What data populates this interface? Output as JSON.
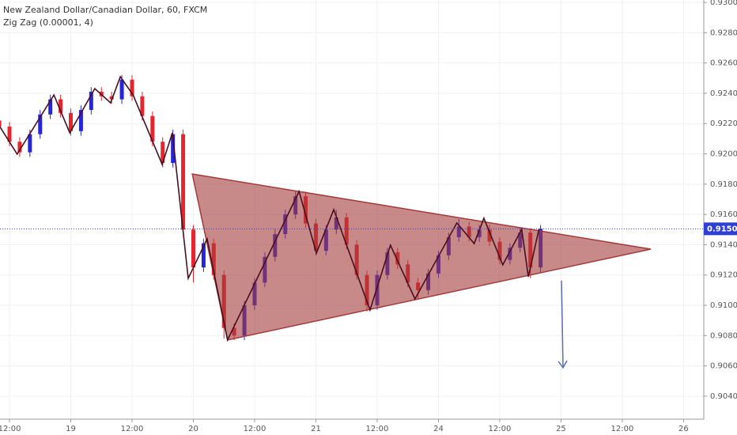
{
  "chart_data": {
    "type": "candlestick",
    "title": "New Zealand Dollar/Canadian Dollar, 60, FXCM",
    "subtitle": "Zig Zag (0.00001, 4)",
    "up_color": "#2626d9",
    "down_color": "#e5262e",
    "grid": true,
    "xlim": [
      -1.86,
      135.96
    ],
    "ylim": [
      0.90248,
      0.93016
    ],
    "xticks": [
      {
        "value": 0,
        "label": "12:00"
      },
      {
        "value": 12,
        "label": "19"
      },
      {
        "value": 24,
        "label": "12:00"
      },
      {
        "value": 36,
        "label": "20"
      },
      {
        "value": 48,
        "label": "12:00"
      },
      {
        "value": 60,
        "label": "21"
      },
      {
        "value": 72,
        "label": "12:00"
      },
      {
        "value": 84,
        "label": "24"
      },
      {
        "value": 96,
        "label": "12:00"
      },
      {
        "value": 108,
        "label": "25"
      },
      {
        "value": 120,
        "label": "12:00"
      },
      {
        "value": 132,
        "label": "26"
      }
    ],
    "yticks": [
      {
        "value": 0.93,
        "label": "0.93000"
      },
      {
        "value": 0.928,
        "label": "0.92800"
      },
      {
        "value": 0.926,
        "label": "0.92600"
      },
      {
        "value": 0.924,
        "label": "0.92400"
      },
      {
        "value": 0.922,
        "label": "0.92200"
      },
      {
        "value": 0.92,
        "label": "0.92000"
      },
      {
        "value": 0.918,
        "label": "0.91800"
      },
      {
        "value": 0.916,
        "label": "0.91600"
      },
      {
        "value": 0.914,
        "label": "0.91400"
      },
      {
        "value": 0.912,
        "label": "0.91200"
      },
      {
        "value": 0.91,
        "label": "0.91000"
      },
      {
        "value": 0.908,
        "label": "0.90800"
      },
      {
        "value": 0.906,
        "label": "0.90600"
      },
      {
        "value": 0.904,
        "label": "0.90400"
      }
    ],
    "x": [
      -2,
      0,
      2,
      4,
      6,
      8,
      10,
      12,
      14,
      16,
      18,
      20,
      22,
      24,
      26,
      28,
      30,
      32,
      34,
      36,
      38,
      40,
      42,
      44,
      46,
      48,
      50,
      52,
      54,
      56,
      58,
      60,
      62,
      64,
      66,
      68,
      70,
      72,
      74,
      76,
      78,
      80,
      82,
      84,
      86,
      88,
      90,
      92,
      94,
      96,
      98,
      100,
      102,
      104
    ],
    "open": [
      0.9222,
      0.9218,
      0.9208,
      0.9201,
      0.9213,
      0.9226,
      0.9236,
      0.9227,
      0.9215,
      0.9229,
      0.9241,
      0.9238,
      0.9236,
      0.9249,
      0.9238,
      0.9225,
      0.9208,
      0.9194,
      0.9213,
      0.915,
      0.9125,
      0.9141,
      0.912,
      0.9085,
      0.908,
      0.91,
      0.9115,
      0.9132,
      0.9147,
      0.916,
      0.9172,
      0.9154,
      0.9136,
      0.915,
      0.9158,
      0.914,
      0.912,
      0.91,
      0.912,
      0.9135,
      0.9127,
      0.9115,
      0.911,
      0.9121,
      0.9133,
      0.9145,
      0.9152,
      0.9145,
      0.915,
      0.9142,
      0.913,
      0.9138,
      0.9148,
      0.9125
    ],
    "high": [
      0.9225,
      0.9221,
      0.9211,
      0.9216,
      0.9229,
      0.9239,
      0.9239,
      0.923,
      0.9232,
      0.9244,
      0.9244,
      0.9241,
      0.9252,
      0.9252,
      0.9241,
      0.9228,
      0.9211,
      0.9216,
      0.9216,
      0.9153,
      0.9144,
      0.9144,
      0.9123,
      0.9088,
      0.9103,
      0.9118,
      0.9135,
      0.915,
      0.9163,
      0.9175,
      0.9175,
      0.9157,
      0.9153,
      0.9163,
      0.9161,
      0.9143,
      0.9123,
      0.9123,
      0.9138,
      0.9138,
      0.913,
      0.9118,
      0.9124,
      0.9136,
      0.9148,
      0.9157,
      0.9155,
      0.9153,
      0.9153,
      0.9145,
      0.9141,
      0.9151,
      0.9151,
      0.9153
    ],
    "low": [
      0.9215,
      0.9205,
      0.9198,
      0.9198,
      0.921,
      0.9223,
      0.9224,
      0.9212,
      0.9212,
      0.9226,
      0.9235,
      0.9233,
      0.9233,
      0.9235,
      0.9222,
      0.9205,
      0.9191,
      0.9191,
      0.9147,
      0.9115,
      0.9122,
      0.9117,
      0.9078,
      0.9077,
      0.9077,
      0.9097,
      0.9112,
      0.9129,
      0.9144,
      0.9157,
      0.9151,
      0.9133,
      0.9133,
      0.9147,
      0.9137,
      0.9117,
      0.9096,
      0.9097,
      0.9117,
      0.9124,
      0.9112,
      0.9104,
      0.9107,
      0.9118,
      0.913,
      0.9142,
      0.9142,
      0.9142,
      0.9139,
      0.9127,
      0.9127,
      0.9135,
      0.9118,
      0.9122
    ],
    "close": [
      0.9218,
      0.9208,
      0.9201,
      0.9213,
      0.9226,
      0.9236,
      0.9227,
      0.9215,
      0.9229,
      0.9241,
      0.9238,
      0.9236,
      0.9249,
      0.9238,
      0.9225,
      0.9208,
      0.9194,
      0.9213,
      0.915,
      0.9125,
      0.9141,
      0.912,
      0.9085,
      0.908,
      0.91,
      0.9115,
      0.9132,
      0.9147,
      0.916,
      0.9172,
      0.9154,
      0.9136,
      0.915,
      0.9158,
      0.914,
      0.912,
      0.91,
      0.912,
      0.9135,
      0.9127,
      0.9115,
      0.911,
      0.9121,
      0.9133,
      0.9145,
      0.9152,
      0.9145,
      0.915,
      0.9142,
      0.913,
      0.9138,
      0.9148,
      0.9125,
      0.91505
    ],
    "zigzag": {
      "color": "#4a0f1e",
      "x": [
        -1.9,
        1.5,
        8.7,
        11.8,
        16.7,
        19.8,
        21.7,
        24.2,
        29.9,
        31.9,
        35.0,
        38.7,
        42.7,
        56.7,
        60.1,
        63.5,
        70.6,
        74.6,
        79.4,
        87.6,
        91.0,
        92.9,
        96.6,
        100.3,
        101.6,
        103.7
      ],
      "y": [
        0.9218,
        0.91998,
        0.92389,
        0.92139,
        0.92431,
        0.92337,
        0.92509,
        0.92389,
        0.9193,
        0.92139,
        0.91178,
        0.91439,
        0.90771,
        0.91752,
        0.91345,
        0.91632,
        0.90969,
        0.91397,
        0.91042,
        0.91544,
        0.91408,
        0.91575,
        0.91267,
        0.91502,
        0.91189,
        0.91505
      ]
    },
    "triangle": {
      "color": "#a33a3a",
      "x": [
        35.8,
        125.6,
        42.7
      ],
      "y": [
        0.91867,
        0.91371,
        0.90771
      ]
    },
    "arrow": {
      "color": "#5b6fae",
      "x": [
        108.1,
        108.4
      ],
      "y": [
        0.91163,
        0.90588
      ]
    },
    "last_price": {
      "value": 0.91505,
      "label": "0.91505",
      "color": "#2f3fd6"
    }
  }
}
